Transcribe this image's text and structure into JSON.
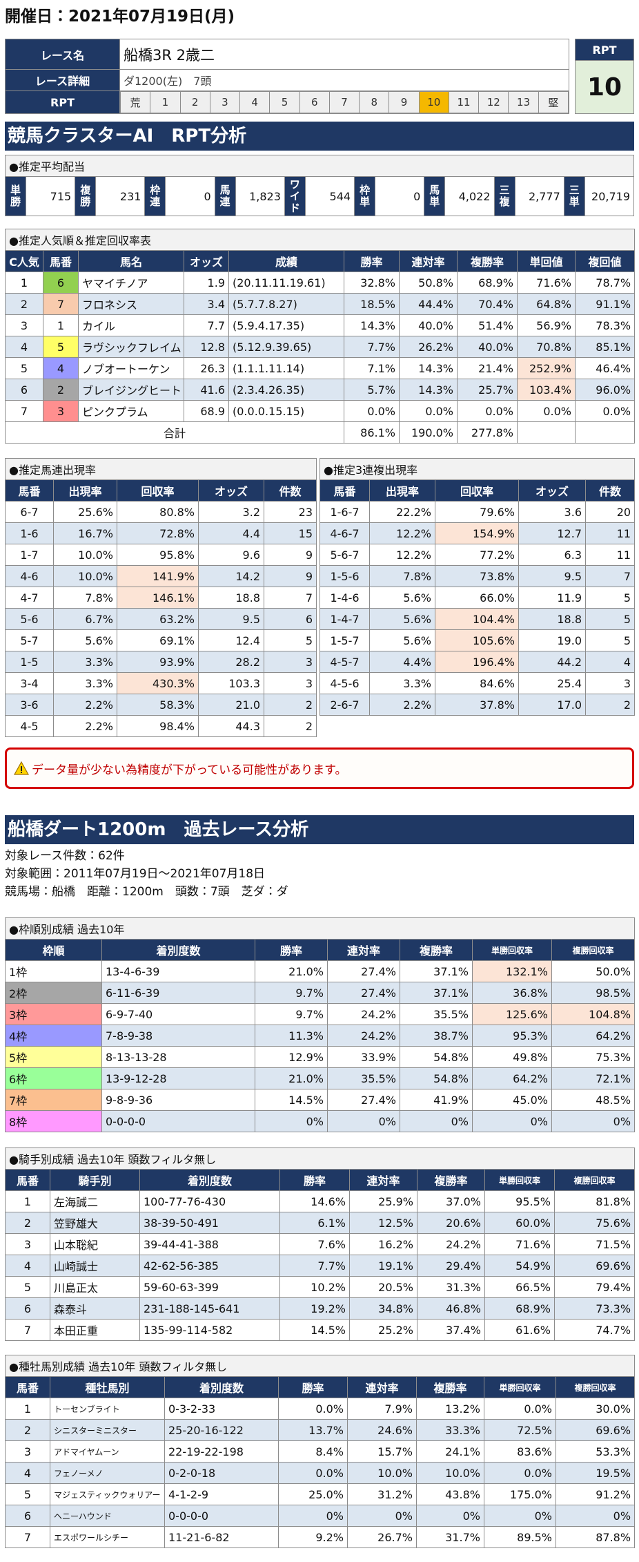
{
  "header": {
    "title": "開催日：2021年07月19日(月)"
  },
  "race": {
    "name_label": "レース名",
    "name": "船橋3R 2歳二",
    "detail_label": "レース詳細",
    "detail": "ダ1200(左)　7頭",
    "rpt_label": "RPT",
    "scale": [
      "荒",
      "1",
      "2",
      "3",
      "4",
      "5",
      "6",
      "7",
      "8",
      "9",
      "10",
      "11",
      "12",
      "13",
      "堅"
    ],
    "rpt_box_label": "RPT",
    "rpt_value": "10"
  },
  "section1": {
    "title": "競馬クラスターAI　RPT分析"
  },
  "payout": {
    "title": "●推定平均配当",
    "items": [
      {
        "label": "単勝",
        "value": "715"
      },
      {
        "label": "複勝",
        "value": "231"
      },
      {
        "label": "枠連",
        "value": "0"
      },
      {
        "label": "馬連",
        "value": "1,823"
      },
      {
        "label": "ワイド",
        "value": "544"
      },
      {
        "label": "枠単",
        "value": "0"
      },
      {
        "label": "馬単",
        "value": "4,022"
      },
      {
        "label": "三複",
        "value": "2,777"
      },
      {
        "label": "三単",
        "value": "20,719"
      }
    ]
  },
  "popularity": {
    "title": "●推定人気順＆推定回収率表",
    "headers": [
      "C人気",
      "馬番",
      "馬名",
      "オッズ",
      "成績",
      "勝率",
      "連対率",
      "複勝率",
      "単回値",
      "複回値"
    ],
    "rows": [
      [
        "1",
        "6",
        "ヤマイチノア",
        "1.9",
        "(20.11.11.19.61)",
        "32.8%",
        "50.8%",
        "68.9%",
        "71.6%",
        "78.7%"
      ],
      [
        "2",
        "7",
        "フロネシス",
        "3.4",
        "(5.7.7.8.27)",
        "18.5%",
        "44.4%",
        "70.4%",
        "64.8%",
        "91.1%"
      ],
      [
        "3",
        "1",
        "カイル",
        "7.7",
        "(5.9.4.17.35)",
        "14.3%",
        "40.0%",
        "51.4%",
        "56.9%",
        "78.3%"
      ],
      [
        "4",
        "5",
        "ラヴシックフレイム",
        "12.8",
        "(5.12.9.39.65)",
        "7.7%",
        "26.2%",
        "40.0%",
        "70.8%",
        "85.1%"
      ],
      [
        "5",
        "4",
        "ノブオートーケン",
        "26.3",
        "(1.1.1.11.14)",
        "7.1%",
        "14.3%",
        "21.4%",
        "252.9%",
        "46.4%"
      ],
      [
        "6",
        "2",
        "ブレイジングヒート",
        "41.6",
        "(2.3.4.26.35)",
        "5.7%",
        "14.3%",
        "25.7%",
        "103.4%",
        "96.0%"
      ],
      [
        "7",
        "3",
        "ピンクプラム",
        "68.9",
        "(0.0.0.15.15)",
        "0.0%",
        "0.0%",
        "0.0%",
        "0.0%",
        "0.0%"
      ]
    ],
    "num_colors": [
      "#92d050",
      "#f8cbad",
      "#ffffff",
      "#ffff66",
      "#9999ff",
      "#a6a6a6",
      "#ff8f8f"
    ],
    "highlight": [
      [
        4,
        8
      ],
      [
        5,
        8
      ]
    ],
    "total": {
      "label": "合計",
      "values": [
        "86.1%",
        "190.0%",
        "277.8%"
      ]
    }
  },
  "umaren": {
    "title": "●推定馬連出現率",
    "headers": [
      "馬番",
      "出現率",
      "回収率",
      "オッズ",
      "件数"
    ],
    "rows": [
      [
        "6-7",
        "25.6%",
        "80.8%",
        "3.2",
        "23"
      ],
      [
        "1-6",
        "16.7%",
        "72.8%",
        "4.4",
        "15"
      ],
      [
        "1-7",
        "10.0%",
        "95.8%",
        "9.6",
        "9"
      ],
      [
        "4-6",
        "10.0%",
        "141.9%",
        "14.2",
        "9"
      ],
      [
        "4-7",
        "7.8%",
        "146.1%",
        "18.8",
        "7"
      ],
      [
        "5-6",
        "6.7%",
        "63.2%",
        "9.5",
        "6"
      ],
      [
        "5-7",
        "5.6%",
        "69.1%",
        "12.4",
        "5"
      ],
      [
        "1-5",
        "3.3%",
        "93.9%",
        "28.2",
        "3"
      ],
      [
        "3-4",
        "3.3%",
        "430.3%",
        "103.3",
        "3"
      ],
      [
        "3-6",
        "2.2%",
        "58.3%",
        "21.0",
        "2"
      ],
      [
        "4-5",
        "2.2%",
        "98.4%",
        "44.3",
        "2"
      ]
    ],
    "highlight": [
      [
        3,
        2
      ],
      [
        4,
        2
      ],
      [
        8,
        2
      ]
    ]
  },
  "sanrenpuku": {
    "title": "●推定3連複出現率",
    "headers": [
      "馬番",
      "出現率",
      "回収率",
      "オッズ",
      "件数"
    ],
    "rows": [
      [
        "1-6-7",
        "22.2%",
        "79.6%",
        "3.6",
        "20"
      ],
      [
        "4-6-7",
        "12.2%",
        "154.9%",
        "12.7",
        "11"
      ],
      [
        "5-6-7",
        "12.2%",
        "77.2%",
        "6.3",
        "11"
      ],
      [
        "1-5-6",
        "7.8%",
        "73.8%",
        "9.5",
        "7"
      ],
      [
        "1-4-6",
        "5.6%",
        "66.0%",
        "11.9",
        "5"
      ],
      [
        "1-4-7",
        "5.6%",
        "104.4%",
        "18.8",
        "5"
      ],
      [
        "1-5-7",
        "5.6%",
        "105.6%",
        "19.0",
        "5"
      ],
      [
        "4-5-7",
        "4.4%",
        "196.4%",
        "44.2",
        "4"
      ],
      [
        "4-5-6",
        "3.3%",
        "84.6%",
        "25.4",
        "3"
      ],
      [
        "2-6-7",
        "2.2%",
        "37.8%",
        "17.0",
        "2"
      ]
    ],
    "highlight": [
      [
        1,
        2
      ],
      [
        5,
        2
      ],
      [
        6,
        2
      ],
      [
        7,
        2
      ]
    ]
  },
  "warning": "データ量が少ない為精度が下がっている可能性があります。",
  "section2": {
    "title": "船橋ダート1200m　過去レース分析"
  },
  "info": [
    "対象レース件数：62件",
    "対象範囲：2011年07月19日～2021年07月18日",
    "競馬場：船橋　距離：1200m　頭数：7頭　芝ダ：ダ"
  ],
  "waku": {
    "title": "●枠順別成績 過去10年",
    "headers": [
      "枠順",
      "着別度数",
      "勝率",
      "連対率",
      "複勝率",
      "単勝回収率",
      "複勝回収率"
    ],
    "rows": [
      [
        "1枠",
        "13-4-6-39",
        "21.0%",
        "27.4%",
        "37.1%",
        "132.1%",
        "50.0%"
      ],
      [
        "2枠",
        "6-11-6-39",
        "9.7%",
        "27.4%",
        "37.1%",
        "36.8%",
        "98.5%"
      ],
      [
        "3枠",
        "6-9-7-40",
        "9.7%",
        "24.2%",
        "35.5%",
        "125.6%",
        "104.8%"
      ],
      [
        "4枠",
        "7-8-9-38",
        "11.3%",
        "24.2%",
        "38.7%",
        "95.3%",
        "64.2%"
      ],
      [
        "5枠",
        "8-13-13-28",
        "12.9%",
        "33.9%",
        "54.8%",
        "49.8%",
        "75.3%"
      ],
      [
        "6枠",
        "13-9-12-28",
        "21.0%",
        "35.5%",
        "54.8%",
        "64.2%",
        "72.1%"
      ],
      [
        "7枠",
        "9-8-9-36",
        "14.5%",
        "27.4%",
        "41.9%",
        "45.0%",
        "48.5%"
      ],
      [
        "8枠",
        "0-0-0-0",
        "0%",
        "0%",
        "0%",
        "0%",
        "0%"
      ]
    ],
    "colors": [
      "#ffffff",
      "#a6a6a6",
      "#ff9999",
      "#9999ff",
      "#ffff99",
      "#99ff99",
      "#fbbf8f",
      "#ff99ff"
    ],
    "highlight": [
      [
        0,
        5
      ],
      [
        2,
        5
      ],
      [
        2,
        6
      ]
    ]
  },
  "jockey": {
    "title": "●騎手別成績 過去10年 頭数フィルタ無し",
    "headers": [
      "馬番",
      "騎手別",
      "着別度数",
      "勝率",
      "連対率",
      "複勝率",
      "単勝回収率",
      "複勝回収率"
    ],
    "rows": [
      [
        "1",
        "左海誠二",
        "100-77-76-430",
        "14.6%",
        "25.9%",
        "37.0%",
        "95.5%",
        "81.8%"
      ],
      [
        "2",
        "笠野雄大",
        "38-39-50-491",
        "6.1%",
        "12.5%",
        "20.6%",
        "60.0%",
        "75.6%"
      ],
      [
        "3",
        "山本聡紀",
        "39-44-41-388",
        "7.6%",
        "16.2%",
        "24.2%",
        "71.6%",
        "71.5%"
      ],
      [
        "4",
        "山崎誠士",
        "42-62-56-385",
        "7.7%",
        "19.1%",
        "29.4%",
        "54.9%",
        "69.6%"
      ],
      [
        "5",
        "川島正太",
        "59-60-63-399",
        "10.2%",
        "20.5%",
        "31.3%",
        "66.5%",
        "79.4%"
      ],
      [
        "6",
        "森泰斗",
        "231-188-145-641",
        "19.2%",
        "34.8%",
        "46.8%",
        "68.9%",
        "73.3%"
      ],
      [
        "7",
        "本田正重",
        "135-99-114-582",
        "14.5%",
        "25.2%",
        "37.4%",
        "61.6%",
        "74.7%"
      ]
    ]
  },
  "sire": {
    "title": "●種牡馬別成績 過去10年 頭数フィルタ無し",
    "headers": [
      "馬番",
      "種牡馬別",
      "着別度数",
      "勝率",
      "連対率",
      "複勝率",
      "単勝回収率",
      "複勝回収率"
    ],
    "rows": [
      [
        "1",
        "トーセンブライト",
        "0-3-2-33",
        "0.0%",
        "7.9%",
        "13.2%",
        "0.0%",
        "30.0%"
      ],
      [
        "2",
        "シニスターミニスター",
        "25-20-16-122",
        "13.7%",
        "24.6%",
        "33.3%",
        "72.5%",
        "69.6%"
      ],
      [
        "3",
        "アドマイヤムーン",
        "22-19-22-198",
        "8.4%",
        "15.7%",
        "24.1%",
        "83.6%",
        "53.3%"
      ],
      [
        "4",
        "フェノーメノ",
        "0-2-0-18",
        "0.0%",
        "10.0%",
        "10.0%",
        "0.0%",
        "19.5%"
      ],
      [
        "5",
        "マジェスティックウォリアー",
        "4-1-2-9",
        "25.0%",
        "31.2%",
        "43.8%",
        "175.0%",
        "91.2%"
      ],
      [
        "6",
        "ヘニーハウンド",
        "0-0-0-0",
        "0%",
        "0%",
        "0%",
        "0%",
        "0%"
      ],
      [
        "7",
        "エスポワールシチー",
        "11-21-6-82",
        "9.2%",
        "26.7%",
        "31.7%",
        "89.5%",
        "87.8%"
      ]
    ]
  }
}
